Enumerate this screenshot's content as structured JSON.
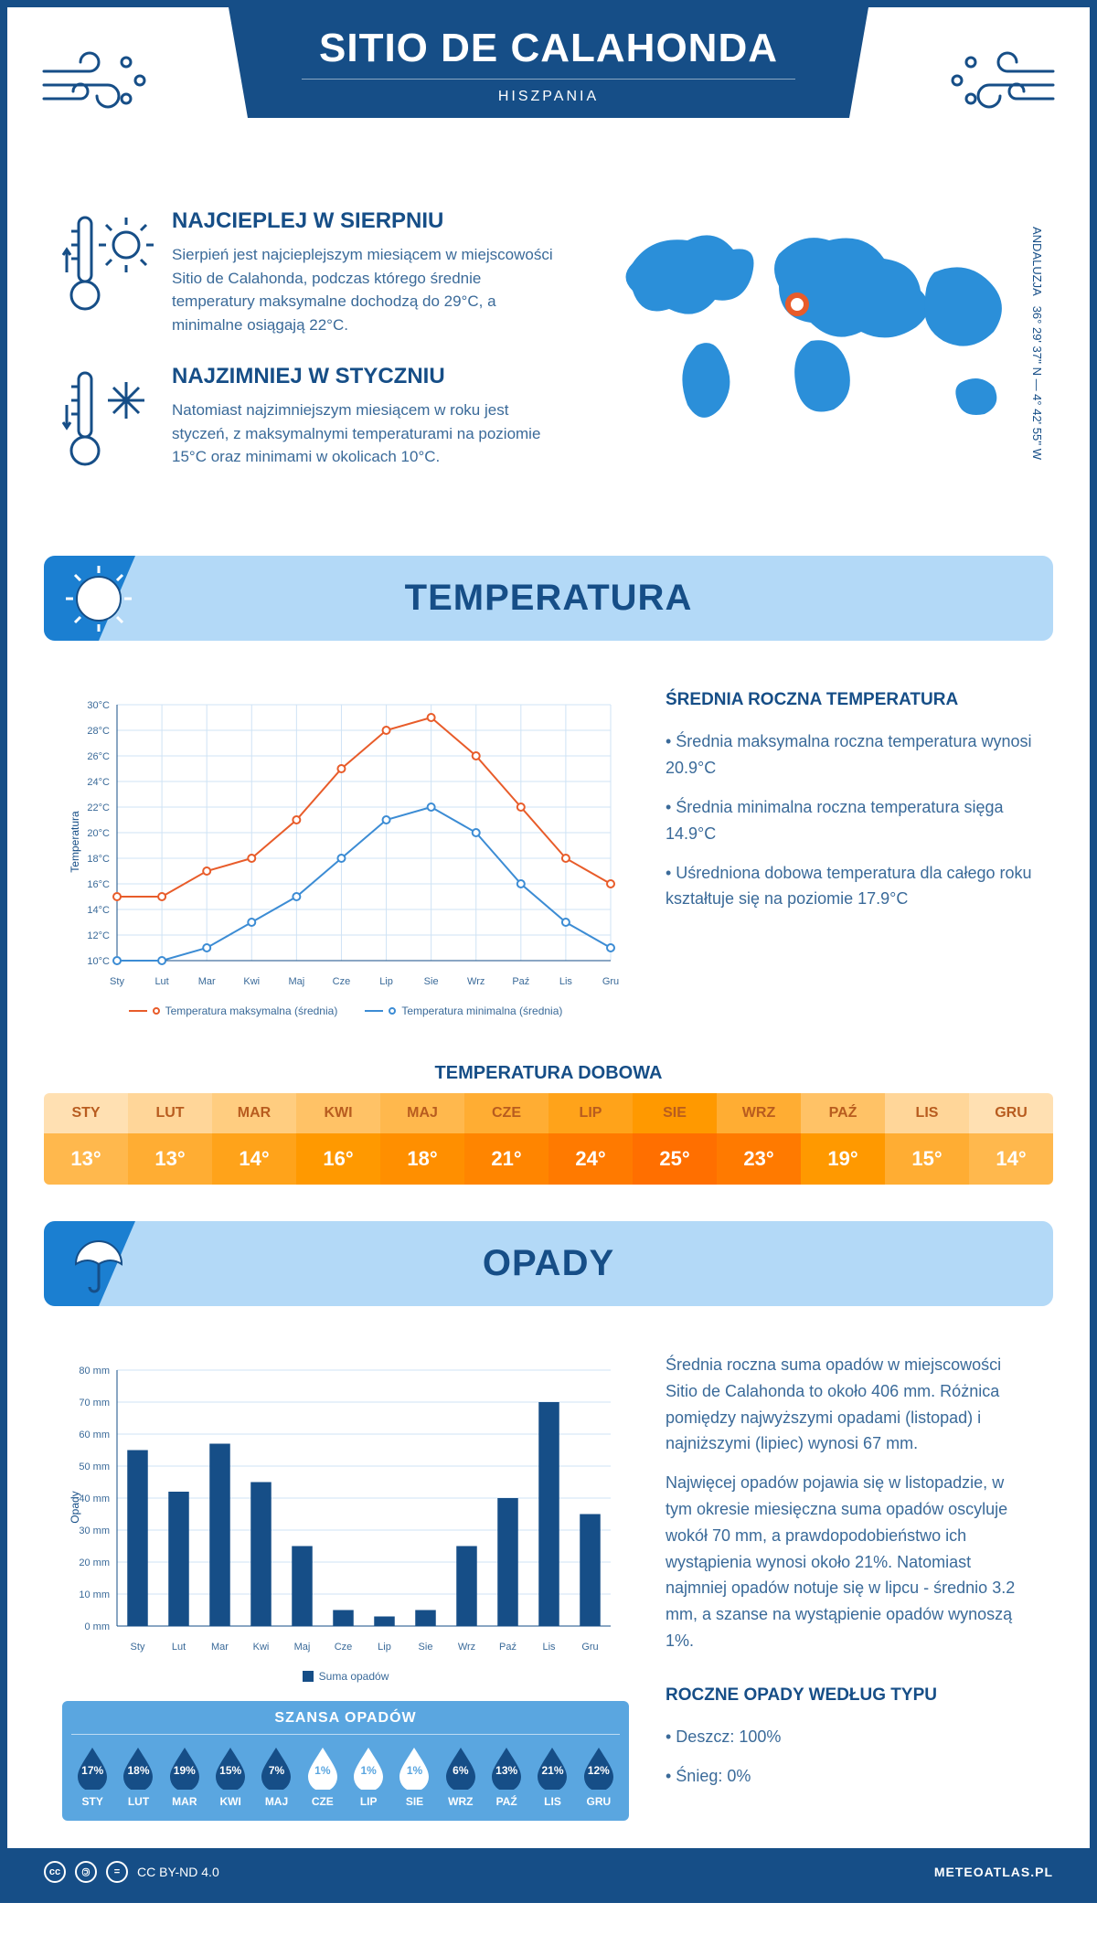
{
  "header": {
    "title": "SITIO DE CALAHONDA",
    "country": "HISZPANIA"
  },
  "coords": {
    "region": "ANDALUZJA",
    "lat_long": "36° 29' 37'' N — 4° 42' 55'' W"
  },
  "facts": {
    "hot": {
      "title": "NAJCIEPLEJ W SIERPNIU",
      "text": "Sierpień jest najcieplejszym miesiącem w miejscowości Sitio de Calahonda, podczas którego średnie temperatury maksymalne dochodzą do 29°C, a minimalne osiągają 22°C."
    },
    "cold": {
      "title": "NAJZIMNIEJ W STYCZNIU",
      "text": "Natomiast najzimniejszym miesiącem w roku jest styczeń, z maksymalnymi temperaturami na poziomie 15°C oraz minimami w okolicach 10°C."
    }
  },
  "sections": {
    "temp_title": "TEMPERATURA",
    "rain_title": "OPADY",
    "daily_temp_title": "TEMPERATURA DOBOWA",
    "chance_title": "SZANSA OPADÓW"
  },
  "months": [
    "Sty",
    "Lut",
    "Mar",
    "Kwi",
    "Maj",
    "Cze",
    "Lip",
    "Sie",
    "Wrz",
    "Paź",
    "Lis",
    "Gru"
  ],
  "months_upper": [
    "STY",
    "LUT",
    "MAR",
    "KWI",
    "MAJ",
    "CZE",
    "LIP",
    "SIE",
    "WRZ",
    "PAŹ",
    "LIS",
    "GRU"
  ],
  "temp_chart": {
    "type": "line",
    "y_label": "Temperatura",
    "y_ticks": [
      10,
      12,
      14,
      16,
      18,
      20,
      22,
      24,
      26,
      28,
      30
    ],
    "y_tick_suffix": "°C",
    "ylim": [
      10,
      30
    ],
    "series": [
      {
        "name": "Temperatura maksymalna (średnia)",
        "color": "#e85c2a",
        "values": [
          15,
          15,
          17,
          18,
          21,
          25,
          28,
          29,
          26,
          22,
          18,
          16
        ]
      },
      {
        "name": "Temperatura minimalna (średnia)",
        "color": "#3c8cd4",
        "values": [
          10,
          10,
          11,
          13,
          15,
          18,
          21,
          22,
          20,
          16,
          13,
          11
        ]
      }
    ],
    "grid_color": "#cfe3f5",
    "background": "#ffffff",
    "line_width": 2,
    "marker": "circle"
  },
  "temp_side": {
    "heading": "ŚREDNIA ROCZNA TEMPERATURA",
    "bullets": [
      "• Średnia maksymalna roczna temperatura wynosi 20.9°C",
      "• Średnia minimalna roczna temperatura sięga 14.9°C",
      "• Uśredniona dobowa temperatura dla całego roku kształtuje się na poziomie 17.9°C"
    ]
  },
  "daily_temp": {
    "values": [
      13,
      13,
      14,
      16,
      18,
      21,
      24,
      25,
      23,
      19,
      15,
      14
    ],
    "header_colors": [
      "#ffe0b2",
      "#ffd699",
      "#ffcd80",
      "#ffc266",
      "#ffb84d",
      "#ffad33",
      "#ffa31a",
      "#ff9900",
      "#ffad33",
      "#ffc266",
      "#ffd699",
      "#ffe0b2"
    ],
    "value_colors": [
      "#ffb84d",
      "#ffad33",
      "#ffa31a",
      "#ff9900",
      "#ff8f00",
      "#ff8500",
      "#ff7a00",
      "#ff6f00",
      "#ff7a00",
      "#ff9900",
      "#ffad33",
      "#ffb84d"
    ]
  },
  "rain_chart": {
    "type": "bar",
    "y_label": "Opady",
    "y_ticks": [
      0,
      10,
      20,
      30,
      40,
      50,
      60,
      70,
      80
    ],
    "y_tick_suffix": " mm",
    "ylim": [
      0,
      80
    ],
    "values": [
      55,
      42,
      57,
      45,
      25,
      5,
      3,
      5,
      25,
      40,
      70,
      35
    ],
    "bar_color": "#164e87",
    "grid_color": "#cfe3f5",
    "legend": "Suma opadów",
    "bar_width": 0.5
  },
  "rain_side": {
    "p1": "Średnia roczna suma opadów w miejscowości Sitio de Calahonda to około 406 mm. Różnica pomiędzy najwyższymi opadami (listopad) i najniższymi (lipiec) wynosi 67 mm.",
    "p2": "Najwięcej opadów pojawia się w listopadzie, w tym okresie miesięczna suma opadów oscyluje wokół 70 mm, a prawdopodobieństwo ich wystąpienia wynosi około 21%. Natomiast najmniej opadów notuje się w lipcu - średnio 3.2 mm, a szanse na wystąpienie opadów wynoszą 1%.",
    "type_heading": "ROCZNE OPADY WEDŁUG TYPU",
    "type_bullets": [
      "• Deszcz: 100%",
      "• Śnieg: 0%"
    ]
  },
  "rain_chance": {
    "values": [
      17,
      18,
      19,
      15,
      7,
      1,
      1,
      1,
      6,
      13,
      21,
      12
    ],
    "low_threshold": 2,
    "drop_fill": "#164e87",
    "drop_empty_fill": "#ffffff",
    "drop_empty_text": "#5aa6e0"
  },
  "footer": {
    "license": "CC BY-ND 4.0",
    "site": "METEOATLAS.PL"
  },
  "colors": {
    "primary": "#164e87",
    "light_blue": "#b3d9f7",
    "mid_blue": "#1b7fd1",
    "accent_orange": "#e85c2a"
  }
}
